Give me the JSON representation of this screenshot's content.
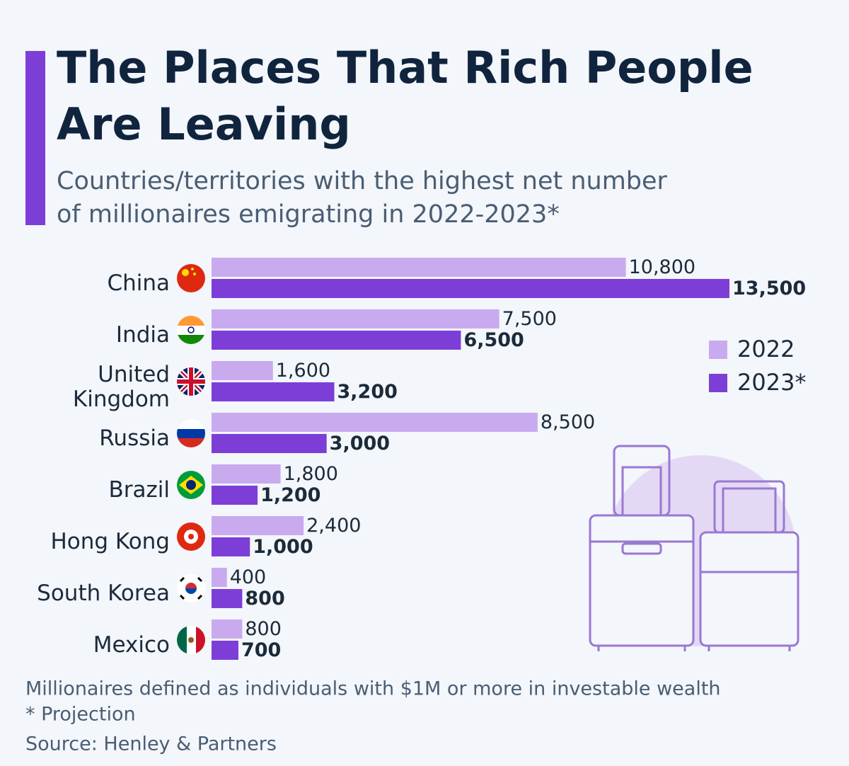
{
  "chart_data": {
    "type": "bar",
    "orientation": "horizontal",
    "title": [
      "The Places That Rich People",
      "Are Leaving"
    ],
    "subtitle": [
      "Countries/territories with the highest net number",
      "of millionaires emigrating in 2022-2023*"
    ],
    "categories": [
      "China",
      "India",
      "United Kingdom",
      "Russia",
      "Brazil",
      "Hong Kong",
      "South Korea",
      "Mexico"
    ],
    "series": [
      {
        "name": "2022",
        "color": "#c9aaee",
        "values": [
          10800,
          7500,
          1600,
          8500,
          1800,
          2400,
          400,
          800
        ],
        "value_labels": [
          "10,800",
          "7,500",
          "1,600",
          "8,500",
          "1,800",
          "2,400",
          "400",
          "800"
        ]
      },
      {
        "name": "2023*",
        "color": "#7d3ed8",
        "values": [
          13500,
          6500,
          3200,
          3000,
          1200,
          1000,
          800,
          700
        ],
        "value_labels": [
          "13,500",
          "6,500",
          "3,200",
          "3,000",
          "1,200",
          "1,000",
          "800",
          "700"
        ]
      }
    ],
    "legend": "right",
    "notes": [
      "Millionaires defined as individuals with $1M or more in investable wealth",
      "* Projection",
      "Source: Henley & Partners"
    ]
  }
}
